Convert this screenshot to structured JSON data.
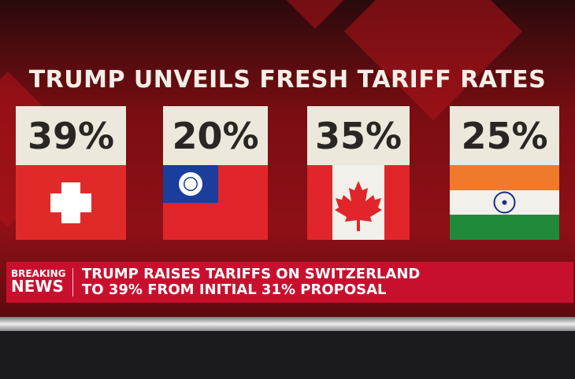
{
  "title": "TRUMP UNVEILS FRESH TARIFF RATES",
  "cards": [
    {
      "rate": "39%"
    },
    {
      "rate": "20%"
    },
    {
      "rate": "35%"
    },
    {
      "rate": "25%"
    }
  ],
  "ticker": {
    "badge_top": "BREAKING",
    "badge_bottom": "NEWS",
    "lines": [
      "TRUMP RAISES TARIFFS ON SWITZERLAND",
      "TO 39% FROM INITIAL 31% PROPOSAL"
    ]
  }
}
